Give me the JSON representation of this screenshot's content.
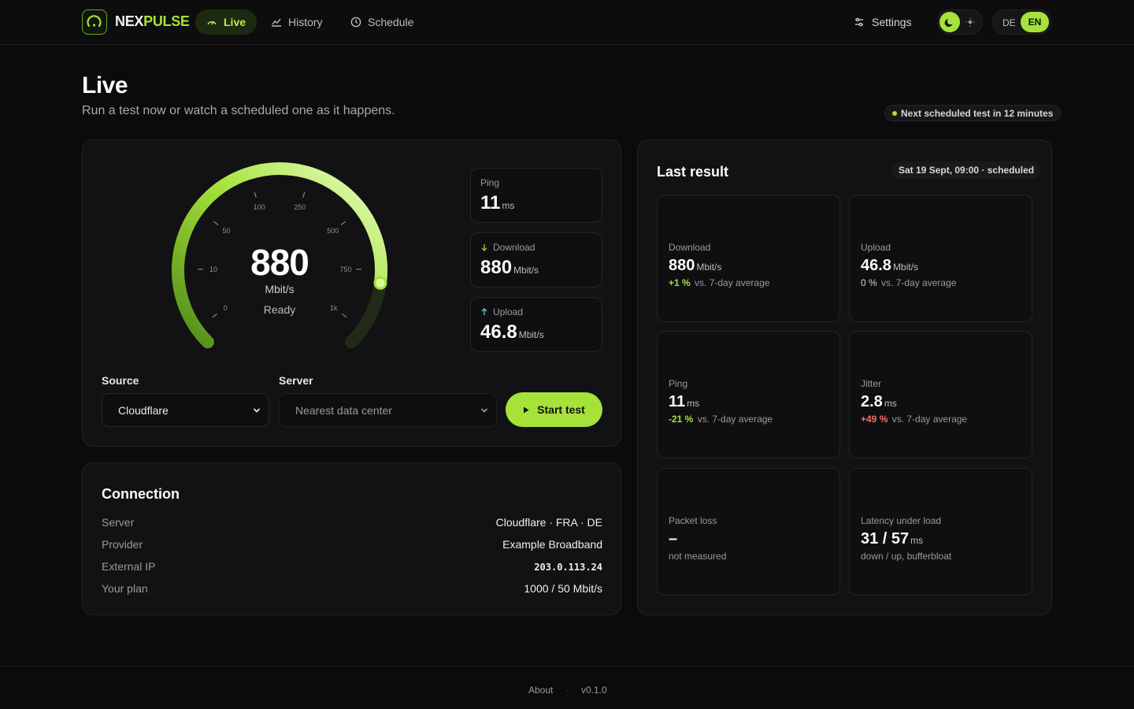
{
  "app": {
    "brand_part1": "NEX",
    "brand_part2": "PULSE",
    "accent_color": "#a6e23a"
  },
  "nav": {
    "live": "Live",
    "history": "History",
    "schedule": "Schedule",
    "settings": "Settings"
  },
  "lang": {
    "de": "DE",
    "en": "EN"
  },
  "page": {
    "title": "Live",
    "subtitle": "Run a test now or watch a scheduled one as it happens.",
    "next_test": "Next scheduled test in 12 minutes"
  },
  "gauge": {
    "value": "880",
    "unit": "Mbit/s",
    "status": "Ready",
    "ticks": [
      "0",
      "10",
      "50",
      "100",
      "250",
      "500",
      "750",
      "1k"
    ],
    "fill_fraction": 0.86
  },
  "mini_stats": {
    "ping_label": "Ping",
    "ping_value": "11",
    "ping_unit": "ms",
    "download_label": "Download",
    "download_value": "880",
    "download_unit": "Mbit/s",
    "upload_label": "Upload",
    "upload_value": "46.8",
    "upload_unit": "Mbit/s"
  },
  "controls": {
    "source_label": "Source",
    "source_value": "Cloudflare",
    "server_label": "Server",
    "server_value": "Nearest data center",
    "start_label": "Start test"
  },
  "connection": {
    "title": "Connection",
    "rows": [
      {
        "key": "Server",
        "value": "Cloudflare · FRA · DE"
      },
      {
        "key": "Provider",
        "value": "Example Broadband"
      },
      {
        "key": "External IP",
        "value": "203.0.113.24"
      },
      {
        "key": "Your plan",
        "value": "1000 / 50 Mbit/s"
      }
    ]
  },
  "last_result": {
    "title": "Last result",
    "date": "Sat 19 Sept, 09:00 · scheduled",
    "tiles": [
      {
        "label": "Download",
        "value": "880",
        "unit": "Mbit/s",
        "delta": "+1 %",
        "note": "vs. 7-day average"
      },
      {
        "label": "Upload",
        "value": "46.8",
        "unit": "Mbit/s",
        "delta": "0 %",
        "note": "vs. 7-day average"
      },
      {
        "label": "Ping",
        "value": "11",
        "unit": "ms",
        "delta": "-21 %",
        "note": "vs. 7-day average"
      },
      {
        "label": "Jitter",
        "value": "2.8",
        "unit": "ms",
        "delta": "+49 %",
        "note": "vs. 7-day average"
      },
      {
        "label": "Packet loss",
        "value": "–",
        "unit": "",
        "delta": "",
        "note": "not measured"
      },
      {
        "label": "Latency under load",
        "value": "31 / 57",
        "unit": "ms",
        "delta": "",
        "note": "down / up, bufferbloat"
      }
    ]
  },
  "footer": {
    "about": "About",
    "sep": "·",
    "version": "v0.1.0"
  }
}
